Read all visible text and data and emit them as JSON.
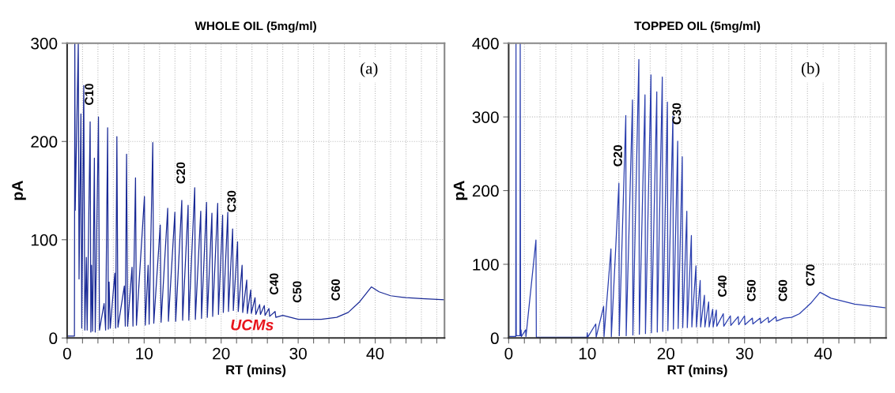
{
  "chart_data": [
    {
      "type": "line",
      "title": "WHOLE OIL (5mg/ml)",
      "xlabel": "RT (mins)",
      "ylabel": "pA",
      "grid": true,
      "xlim": [
        0,
        49
      ],
      "ylim": [
        0,
        300
      ],
      "xticks": [
        0,
        {
          "value": 2,
          "label": null
        },
        {
          "value": 4,
          "label": null
        },
        {
          "value": 6,
          "label": null
        },
        {
          "value": 8,
          "label": null
        },
        10,
        {
          "value": 12,
          "label": null
        },
        {
          "value": 14,
          "label": null
        },
        {
          "value": 16,
          "label": null
        },
        {
          "value": 18,
          "label": null
        },
        20,
        {
          "value": 22,
          "label": null
        },
        {
          "value": 24,
          "label": null
        },
        {
          "value": 26,
          "label": null
        },
        {
          "value": 28,
          "label": null
        },
        30,
        {
          "value": 32,
          "label": null
        },
        {
          "value": 34,
          "label": null
        },
        {
          "value": 36,
          "label": null
        },
        {
          "value": 38,
          "label": null
        },
        40,
        {
          "value": 42,
          "label": null
        },
        {
          "value": 44,
          "label": null
        },
        {
          "value": 46,
          "label": null
        },
        {
          "value": 48,
          "label": null
        }
      ],
      "yticks": [
        0,
        100,
        200,
        300
      ],
      "annotations": [
        "(a)",
        "UCMs",
        {
          "text": "C10",
          "x": 2.99,
          "y": 220
        },
        {
          "text": "C20",
          "x": 14.89,
          "y": 140
        },
        {
          "text": "C30",
          "x": 21.49,
          "y": 111
        },
        {
          "text": "C40",
          "x": 27,
          "y": 27
        },
        {
          "text": "C50",
          "x": 30,
          "y": 19
        },
        {
          "text": "C60",
          "x": 35,
          "y": 21
        }
      ],
      "series": [
        {
          "color": "#1a2a96",
          "x": [
            0,
            0.95,
            1.0,
            1.05,
            1.45,
            1.55,
            1.79,
            1.9,
            2.16,
            2.3,
            2.5,
            2.6,
            2.99,
            3.08,
            3.17,
            3.3,
            3.54,
            3.65,
            4.07,
            4.2,
            4.8,
            5.0,
            5.26,
            5.35,
            5.45,
            5.6,
            6.19,
            6.3,
            6.46,
            6.6,
            7.43,
            7.55,
            7.72,
            7.85,
            8.43,
            8.55,
            8.88,
            9.0,
            10.04,
            10.15,
            10.52,
            10.65,
            11.12,
            11.25,
            12.09,
            12.2,
            13.06,
            13.15,
            13.99,
            14.1,
            14.89,
            15.0,
            15.71,
            15.8,
            16.57,
            16.65,
            17.35,
            17.45,
            18.1,
            18.2,
            18.8,
            18.9,
            19.55,
            19.65,
            20.19,
            20.28,
            20.86,
            20.95,
            21.49,
            21.58,
            22.13,
            22.22,
            22.72,
            22.8,
            23.32,
            23.4,
            23.84,
            23.92,
            24.4,
            24.5,
            25.0,
            25.1,
            25.6,
            25.7,
            26.2,
            26.3,
            27,
            27.1,
            28,
            30,
            33,
            35,
            36.5,
            38,
            39.5,
            40.5,
            42,
            44,
            46,
            49
          ],
          "values": [
            2,
            2,
            300,
            130,
            300,
            60,
            228,
            10,
            257,
            8,
            82,
            8,
            220,
            6,
            74,
            7,
            183,
            6,
            225,
            8,
            35,
            8,
            214,
            9,
            57,
            10,
            66,
            10,
            205,
            11,
            53,
            12,
            187,
            12,
            72,
            12,
            163,
            13,
            144,
            13,
            74,
            14,
            199,
            15,
            115,
            16,
            132,
            17,
            128,
            17,
            140,
            18,
            135,
            18,
            153,
            19,
            129,
            20,
            138,
            21,
            127,
            22,
            137,
            24,
            125,
            26,
            128,
            27,
            111,
            28,
            98,
            27,
            74,
            26,
            59,
            25,
            49,
            25,
            41,
            24,
            34,
            24,
            33,
            23,
            30,
            22,
            27,
            21,
            23,
            19,
            19,
            21,
            26,
            37,
            52,
            47,
            43,
            41,
            40,
            39
          ]
        }
      ]
    },
    {
      "type": "line",
      "title": "TOPPED OIL (5mg/ml)",
      "xlabel": "RT (mins)",
      "ylabel": "pA",
      "grid": true,
      "xlim": [
        0,
        48
      ],
      "ylim": [
        0,
        400
      ],
      "xticks": [
        0,
        {
          "value": 2,
          "label": null
        },
        {
          "value": 4,
          "label": null
        },
        {
          "value": 6,
          "label": null
        },
        {
          "value": 8,
          "label": null
        },
        10,
        {
          "value": 12,
          "label": null
        },
        {
          "value": 14,
          "label": null
        },
        {
          "value": 16,
          "label": null
        },
        {
          "value": 18,
          "label": null
        },
        20,
        {
          "value": 22,
          "label": null
        },
        {
          "value": 24,
          "label": null
        },
        {
          "value": 26,
          "label": null
        },
        {
          "value": 28,
          "label": null
        },
        30,
        {
          "value": 32,
          "label": null
        },
        {
          "value": 34,
          "label": null
        },
        {
          "value": 36,
          "label": null
        },
        {
          "value": 38,
          "label": null
        },
        40,
        {
          "value": 42,
          "label": null
        },
        {
          "value": 44,
          "label": null
        },
        {
          "value": 46,
          "label": null
        }
      ],
      "yticks": [
        0,
        100,
        200,
        300,
        400
      ],
      "annotations": [
        "(b)",
        {
          "text": "C20",
          "x": 14.02,
          "y": 210
        },
        {
          "text": "C30",
          "x": 21.5,
          "y": 267
        },
        {
          "text": "C40",
          "x": 27.3,
          "y": 33
        },
        {
          "text": "C50",
          "x": 31,
          "y": 27
        },
        {
          "text": "C60",
          "x": 35,
          "y": 27
        },
        {
          "text": "C70",
          "x": 38.5,
          "y": 48
        }
      ],
      "series": [
        {
          "color": "#2a3eae",
          "x": [
            0,
            0.9,
            0.93,
            0.97,
            1.44,
            1.47,
            1.52,
            1.58,
            1.62,
            2.16,
            2.2,
            3.47,
            3.52,
            9.95,
            10.0,
            10.05,
            11.08,
            11.13,
            12.08,
            12.13,
            13.01,
            13.06,
            14.02,
            14.07,
            14.9,
            14.95,
            15.75,
            15.8,
            16.56,
            16.62,
            17.34,
            17.4,
            18.1,
            18.16,
            18.84,
            18.9,
            19.54,
            19.6,
            20.19,
            20.25,
            20.89,
            20.95,
            21.5,
            21.56,
            22.08,
            22.14,
            22.66,
            22.72,
            23.24,
            23.3,
            23.82,
            23.88,
            24.36,
            24.42,
            24.9,
            24.96,
            25.44,
            25.5,
            25.95,
            26.01,
            26.41,
            26.47,
            27.3,
            27.36,
            28.2,
            28.26,
            29.2,
            29.26,
            30,
            30.06,
            31,
            31.06,
            32,
            32.06,
            33,
            33.06,
            34,
            34.06,
            35,
            36,
            37,
            38.5,
            39.6,
            41,
            44,
            48
          ],
          "values": [
            2,
            2,
            400,
            3,
            3,
            400,
            3,
            11,
            2,
            11,
            2,
            133,
            1,
            1,
            7,
            1,
            19,
            1,
            43,
            2,
            121,
            2,
            210,
            3,
            302,
            3,
            323,
            4,
            378,
            5,
            330,
            6,
            357,
            7,
            334,
            8,
            354,
            9,
            320,
            10,
            301,
            12,
            267,
            13,
            246,
            14,
            172,
            14,
            139,
            15,
            98,
            15,
            78,
            15,
            58,
            15,
            49,
            15,
            39,
            15,
            38,
            16,
            33,
            16,
            30,
            17,
            29,
            18,
            30,
            18,
            27,
            19,
            27,
            20,
            28,
            21,
            29,
            23,
            27,
            28,
            33,
            48,
            62,
            54,
            46,
            41
          ]
        }
      ]
    }
  ]
}
